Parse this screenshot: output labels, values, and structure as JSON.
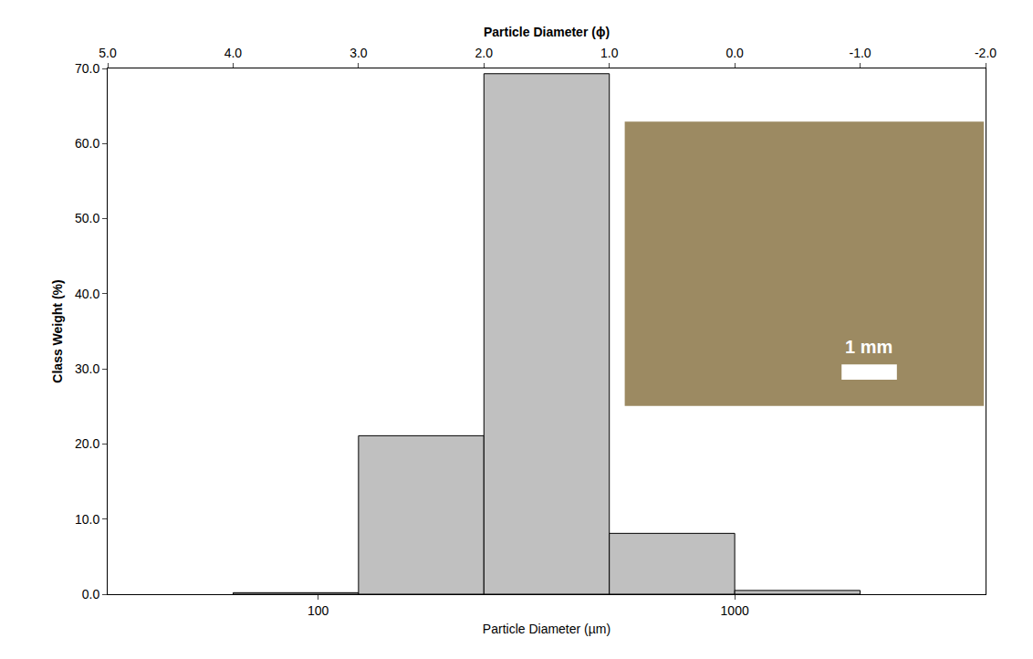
{
  "chart_data": {
    "type": "histogram",
    "x_label": "Particle Diameter (µm)",
    "x2_label": "Particle Diameter (ϕ)",
    "y_label": "Class Weight (%)",
    "bins": [
      62.5,
      125,
      250,
      500,
      1000,
      2000
    ],
    "values": [
      0.2,
      21.1,
      69.3,
      8.1,
      0.5
    ],
    "color": "#c0c0c0",
    "log": "x",
    "grid": false,
    "xlim": [
      31.25,
      4000
    ],
    "xticks": [
      100,
      1000
    ],
    "x2lim": [
      5,
      -2
    ],
    "x2ticks": [
      {
        "value": 5,
        "label": "5.0"
      },
      {
        "value": 4,
        "label": "4.0"
      },
      {
        "value": 3,
        "label": "3.0"
      },
      {
        "value": 2,
        "label": "2.0"
      },
      {
        "value": 1,
        "label": "1.0"
      },
      {
        "value": 0,
        "label": "0.0"
      },
      {
        "value": -1,
        "label": "-1.0"
      },
      {
        "value": -2,
        "label": "-2.0"
      }
    ],
    "ylim": [
      0,
      70
    ],
    "yticks": [
      {
        "value": 0,
        "label": "0.0"
      },
      {
        "value": 10,
        "label": "10.0"
      },
      {
        "value": 20,
        "label": "20.0"
      },
      {
        "value": 30,
        "label": "30.0"
      },
      {
        "value": 40,
        "label": "40.0"
      },
      {
        "value": 50,
        "label": "50.0"
      },
      {
        "value": 60,
        "label": "60.0"
      },
      {
        "value": 70,
        "label": "70.0"
      }
    ],
    "annotations": [
      "1 mm"
    ]
  }
}
